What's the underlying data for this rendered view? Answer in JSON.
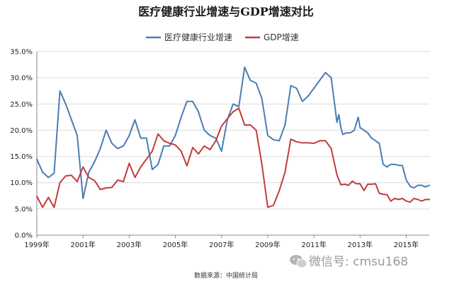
{
  "chart_data": {
    "type": "line",
    "title": "医疗健康行业增速与GDP增速对比",
    "source": "数据来源：中国统计局",
    "watermark": "微信号: cmsu168",
    "xlim": [
      1999,
      2016
    ],
    "ylim": [
      0,
      35
    ],
    "y_ticks": [
      "0.0%",
      "5.0%",
      "10.0%",
      "15.0%",
      "20.0%",
      "25.0%",
      "30.0%",
      "35.0%"
    ],
    "x_ticks": [
      "1999年",
      "2001年",
      "2003年",
      "2005年",
      "2007年",
      "2009年",
      "2011年",
      "2013年",
      "2015年"
    ],
    "legend_position": "top",
    "grid": true,
    "series": [
      {
        "name": "医疗健康行业增速",
        "color": "#4a7db3",
        "x": [
          1999.0,
          1999.25,
          1999.5,
          1999.75,
          2000.0,
          2000.25,
          2000.5,
          2000.75,
          2001.0,
          2001.25,
          2001.5,
          2001.75,
          2002.0,
          2002.25,
          2002.5,
          2002.75,
          2003.0,
          2003.25,
          2003.5,
          2003.75,
          2004.0,
          2004.25,
          2004.5,
          2004.75,
          2005.0,
          2005.25,
          2005.5,
          2005.75,
          2006.0,
          2006.25,
          2006.5,
          2006.75,
          2007.0,
          2007.25,
          2007.5,
          2007.75,
          2008.0,
          2008.25,
          2008.5,
          2008.75,
          2009.0,
          2009.25,
          2009.5,
          2009.75,
          2010.0,
          2010.25,
          2010.5,
          2010.75,
          2011.0,
          2011.25,
          2011.5,
          2011.75,
          2012.0,
          2012.08,
          2012.17,
          2012.25,
          2012.42,
          2012.58,
          2012.75,
          2012.92,
          2013.0,
          2013.17,
          2013.33,
          2013.5,
          2013.67,
          2013.83,
          2014.0,
          2014.17,
          2014.33,
          2014.5,
          2014.67,
          2014.83,
          2015.0,
          2015.17,
          2015.33,
          2015.5,
          2015.67,
          2015.83,
          2016.0
        ],
        "values": [
          14.5,
          12.0,
          11.0,
          11.8,
          27.5,
          25.0,
          22.0,
          19.0,
          7.0,
          12.0,
          14.0,
          16.5,
          20.0,
          17.5,
          16.5,
          17.0,
          19.0,
          22.0,
          18.5,
          18.5,
          12.5,
          13.5,
          17.0,
          17.0,
          19.0,
          22.5,
          25.5,
          25.5,
          23.5,
          20.0,
          19.0,
          18.5,
          16.0,
          22.0,
          25.0,
          24.5,
          32.0,
          29.5,
          29.0,
          26.0,
          19.0,
          18.2,
          18.0,
          21.0,
          28.5,
          28.0,
          25.5,
          26.5,
          28.0,
          29.5,
          31.0,
          30.0,
          21.5,
          23.0,
          20.5,
          19.2,
          19.5,
          19.5,
          20.0,
          22.5,
          20.5,
          20.0,
          19.5,
          18.5,
          18.0,
          17.5,
          13.5,
          13.0,
          13.5,
          13.5,
          13.3,
          13.3,
          10.5,
          9.3,
          9.0,
          9.5,
          9.5,
          9.2,
          9.5
        ]
      },
      {
        "name": "GDP增速",
        "color": "#c23c3c",
        "x": [
          1999.0,
          1999.25,
          1999.5,
          1999.75,
          2000.0,
          2000.25,
          2000.5,
          2000.75,
          2001.0,
          2001.25,
          2001.5,
          2001.75,
          2002.0,
          2002.25,
          2002.5,
          2002.75,
          2003.0,
          2003.25,
          2003.5,
          2003.75,
          2004.0,
          2004.25,
          2004.5,
          2004.75,
          2005.0,
          2005.25,
          2005.5,
          2005.75,
          2006.0,
          2006.25,
          2006.5,
          2006.75,
          2007.0,
          2007.25,
          2007.5,
          2007.75,
          2008.0,
          2008.25,
          2008.5,
          2008.75,
          2009.0,
          2009.25,
          2009.5,
          2009.75,
          2010.0,
          2010.25,
          2010.5,
          2010.75,
          2011.0,
          2011.25,
          2011.5,
          2011.75,
          2012.0,
          2012.17,
          2012.33,
          2012.5,
          2012.67,
          2012.83,
          2013.0,
          2013.17,
          2013.33,
          2013.5,
          2013.67,
          2013.83,
          2014.0,
          2014.17,
          2014.33,
          2014.5,
          2014.67,
          2014.83,
          2015.0,
          2015.17,
          2015.33,
          2015.5,
          2015.67,
          2015.83,
          2016.0
        ],
        "values": [
          7.4,
          5.3,
          7.2,
          5.3,
          10.0,
          11.3,
          11.4,
          10.2,
          13.0,
          11.0,
          10.4,
          8.7,
          9.0,
          9.1,
          10.5,
          10.2,
          13.7,
          11.0,
          13.0,
          14.5,
          16.0,
          19.3,
          18.0,
          17.5,
          17.2,
          16.0,
          13.2,
          16.7,
          15.5,
          17.0,
          16.3,
          18.0,
          20.8,
          22.2,
          23.5,
          24.2,
          21.0,
          21.0,
          20.0,
          13.5,
          5.3,
          5.7,
          8.5,
          12.0,
          18.3,
          17.8,
          17.6,
          17.6,
          17.5,
          18.0,
          18.0,
          16.5,
          11.5,
          9.6,
          9.7,
          9.5,
          10.3,
          9.8,
          9.8,
          8.5,
          9.7,
          9.7,
          9.8,
          8.0,
          7.8,
          7.7,
          6.5,
          7.0,
          6.8,
          7.0,
          6.5,
          6.3,
          7.0,
          6.8,
          6.5,
          6.8,
          6.8
        ]
      }
    ]
  }
}
